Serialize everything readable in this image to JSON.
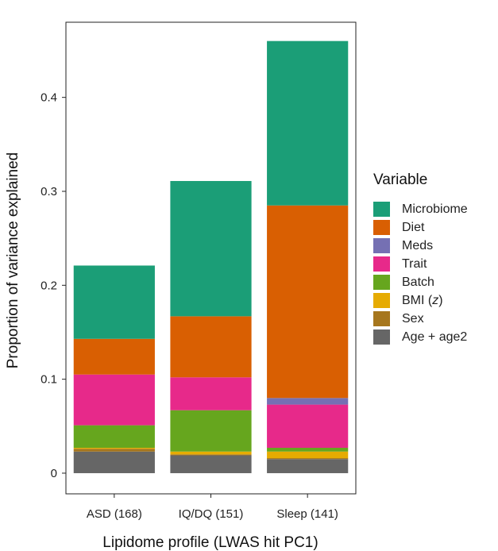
{
  "chart_data": {
    "type": "bar",
    "stacked": true,
    "title": "",
    "xlabel": "Lipidome profile (LWAS hit PC1)",
    "ylabel": "Proportion of variance explained",
    "ylim": [
      -0.022,
      0.48
    ],
    "yticks": [
      0,
      0.1,
      0.2,
      0.3,
      0.4
    ],
    "ytick_labels": [
      "0",
      "0.1",
      "0.2",
      "0.3",
      "0.4"
    ],
    "categories": [
      "ASD (168)",
      "IQ/DQ (151)",
      "Sleep (141)"
    ],
    "legend_title": "Variable",
    "legend_position": "right",
    "series": [
      {
        "name": "Age + age2",
        "color": "#666666",
        "values": [
          0.023,
          0.019,
          0.015
        ]
      },
      {
        "name": "Sex",
        "color": "#A6761D",
        "values": [
          0.003,
          0.001,
          0.001
        ]
      },
      {
        "name": "BMI (z)",
        "color": "#E6AB02",
        "values": [
          0.001,
          0.003,
          0.007
        ]
      },
      {
        "name": "Batch",
        "color": "#66A61E",
        "values": [
          0.024,
          0.044,
          0.004
        ]
      },
      {
        "name": "Trait",
        "color": "#E7298A",
        "values": [
          0.054,
          0.035,
          0.046
        ]
      },
      {
        "name": "Meds",
        "color": "#7570B3",
        "values": [
          0.0,
          0.0,
          0.007
        ]
      },
      {
        "name": "Diet",
        "color": "#D95F02",
        "values": [
          0.038,
          0.065,
          0.205
        ]
      },
      {
        "name": "Microbiome",
        "color": "#1B9E77",
        "values": [
          0.078,
          0.144,
          0.175
        ]
      }
    ],
    "legend_order": [
      "Microbiome",
      "Diet",
      "Meds",
      "Trait",
      "Batch",
      "BMI (z)",
      "Sex",
      "Age + age2"
    ]
  }
}
